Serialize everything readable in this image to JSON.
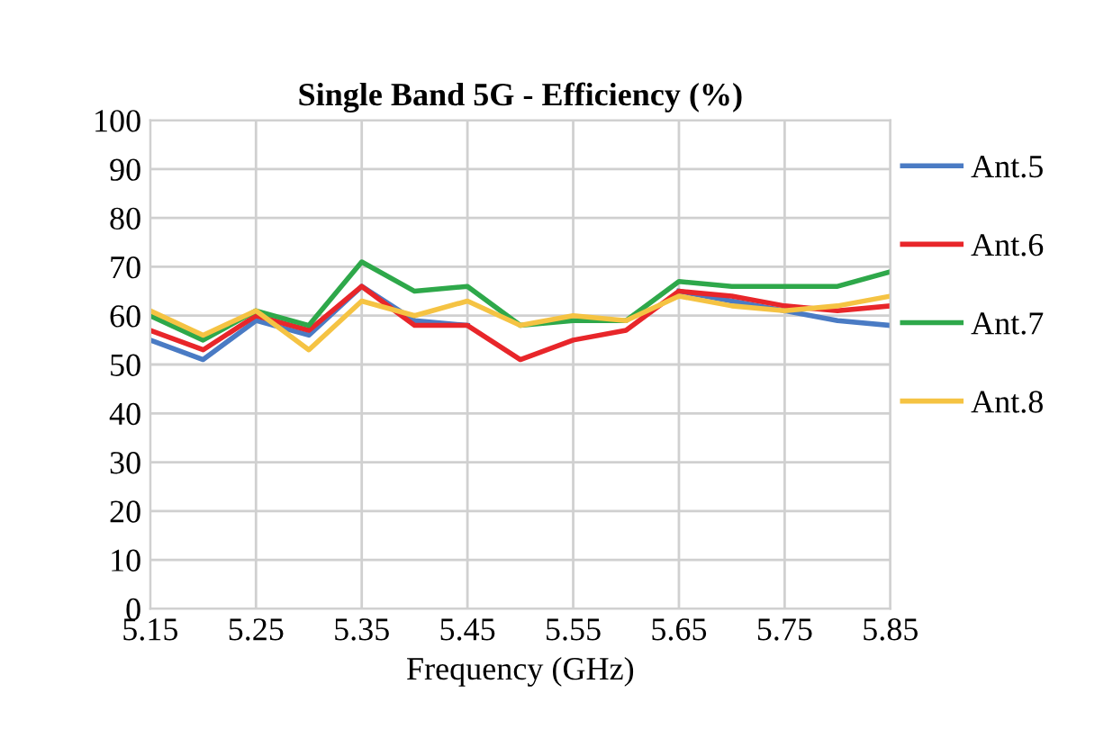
{
  "chart_data": {
    "type": "line",
    "title": "Single Band 5G - Efficiency (%)",
    "xlabel": "Frequency (GHz)",
    "x": [
      5.15,
      5.2,
      5.25,
      5.3,
      5.35,
      5.4,
      5.45,
      5.5,
      5.55,
      5.6,
      5.65,
      5.7,
      5.75,
      5.8,
      5.85
    ],
    "series": [
      {
        "name": "Ant.5",
        "color": "#4a7bc4",
        "values": [
          55,
          51,
          59,
          56,
          66,
          59,
          58,
          null,
          null,
          null,
          65,
          63,
          61,
          59,
          58
        ]
      },
      {
        "name": "Ant.6",
        "color": "#e8262a",
        "values": [
          57,
          53,
          60,
          57,
          66,
          58,
          58,
          51,
          55,
          57,
          65,
          64,
          62,
          61,
          62
        ]
      },
      {
        "name": "Ant.7",
        "color": "#2ea84a",
        "values": [
          60,
          55,
          61,
          58,
          71,
          65,
          66,
          58,
          59,
          59,
          67,
          66,
          66,
          66,
          69
        ]
      },
      {
        "name": "Ant.8",
        "color": "#f5c343",
        "values": [
          61,
          56,
          61,
          53,
          63,
          60,
          63,
          58,
          60,
          59,
          64,
          62,
          61,
          62,
          64
        ]
      }
    ],
    "xlim": [
      5.15,
      5.85
    ],
    "xticks": [
      {
        "value": 5.15,
        "label": "5.15"
      },
      {
        "value": 5.25,
        "label": "5.25"
      },
      {
        "value": 5.35,
        "label": "5.35"
      },
      {
        "value": 5.45,
        "label": "5.45"
      },
      {
        "value": 5.55,
        "label": "5.55"
      },
      {
        "value": 5.65,
        "label": "5.65"
      },
      {
        "value": 5.75,
        "label": "5.75"
      },
      {
        "value": 5.85,
        "label": "5.85"
      }
    ],
    "ylim": [
      0,
      100
    ],
    "yticks": [
      0,
      10,
      20,
      30,
      40,
      50,
      60,
      70,
      80,
      90,
      100
    ],
    "grid": true,
    "legend": "right",
    "marker": "none",
    "line_style": "solid"
  }
}
